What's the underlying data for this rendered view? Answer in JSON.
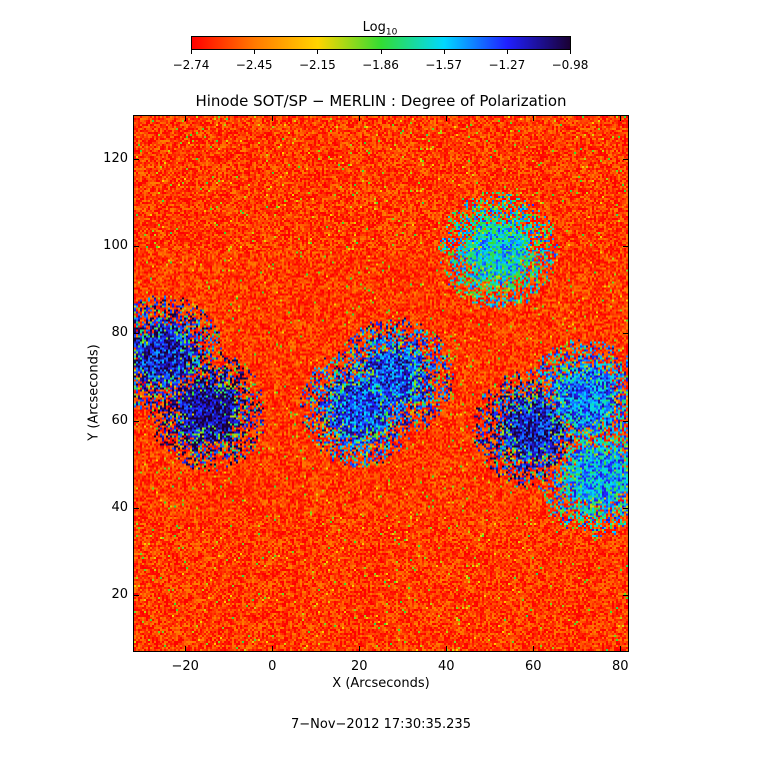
{
  "colorbar": {
    "label": "Log",
    "label_subscript": "10",
    "ticks": [
      "−2.74",
      "−2.45",
      "−2.15",
      "−1.86",
      "−1.57",
      "−1.27",
      "−0.98"
    ],
    "colors": [
      "#ff0000",
      "#ff7a00",
      "#ffd400",
      "#33dd33",
      "#00d8ff",
      "#2020ff",
      "#1a0033"
    ]
  },
  "timestamp": "7−Nov−2012 17:30:35.235",
  "chart_data": {
    "type": "heatmap",
    "title": "Hinode SOT/SP − MERLIN : Degree of Polarization",
    "xlabel": "X (Arcseconds)",
    "ylabel": "Y (Arcseconds)",
    "xlim": [
      -32,
      82
    ],
    "ylim": [
      7,
      130
    ],
    "x_ticks": [
      "−20",
      "0",
      "20",
      "40",
      "60",
      "80"
    ],
    "x_tick_values": [
      -20,
      0,
      20,
      40,
      60,
      80
    ],
    "y_ticks": [
      "20",
      "40",
      "60",
      "80",
      "100",
      "120"
    ],
    "y_tick_values": [
      20,
      40,
      60,
      80,
      100,
      120
    ],
    "value_range": [
      -2.74,
      -0.98
    ],
    "background_value": -2.6,
    "high_polarization_regions": [
      {
        "x": -15,
        "y": 62,
        "value": -1.1
      },
      {
        "x": -25,
        "y": 75,
        "value": -1.2
      },
      {
        "x": 20,
        "y": 63,
        "value": -1.3
      },
      {
        "x": 28,
        "y": 70,
        "value": -1.3
      },
      {
        "x": 60,
        "y": 58,
        "value": -1.2
      },
      {
        "x": 72,
        "y": 65,
        "value": -1.4
      },
      {
        "x": 75,
        "y": 47,
        "value": -1.5
      },
      {
        "x": 52,
        "y": 99,
        "value": -1.6
      }
    ]
  }
}
